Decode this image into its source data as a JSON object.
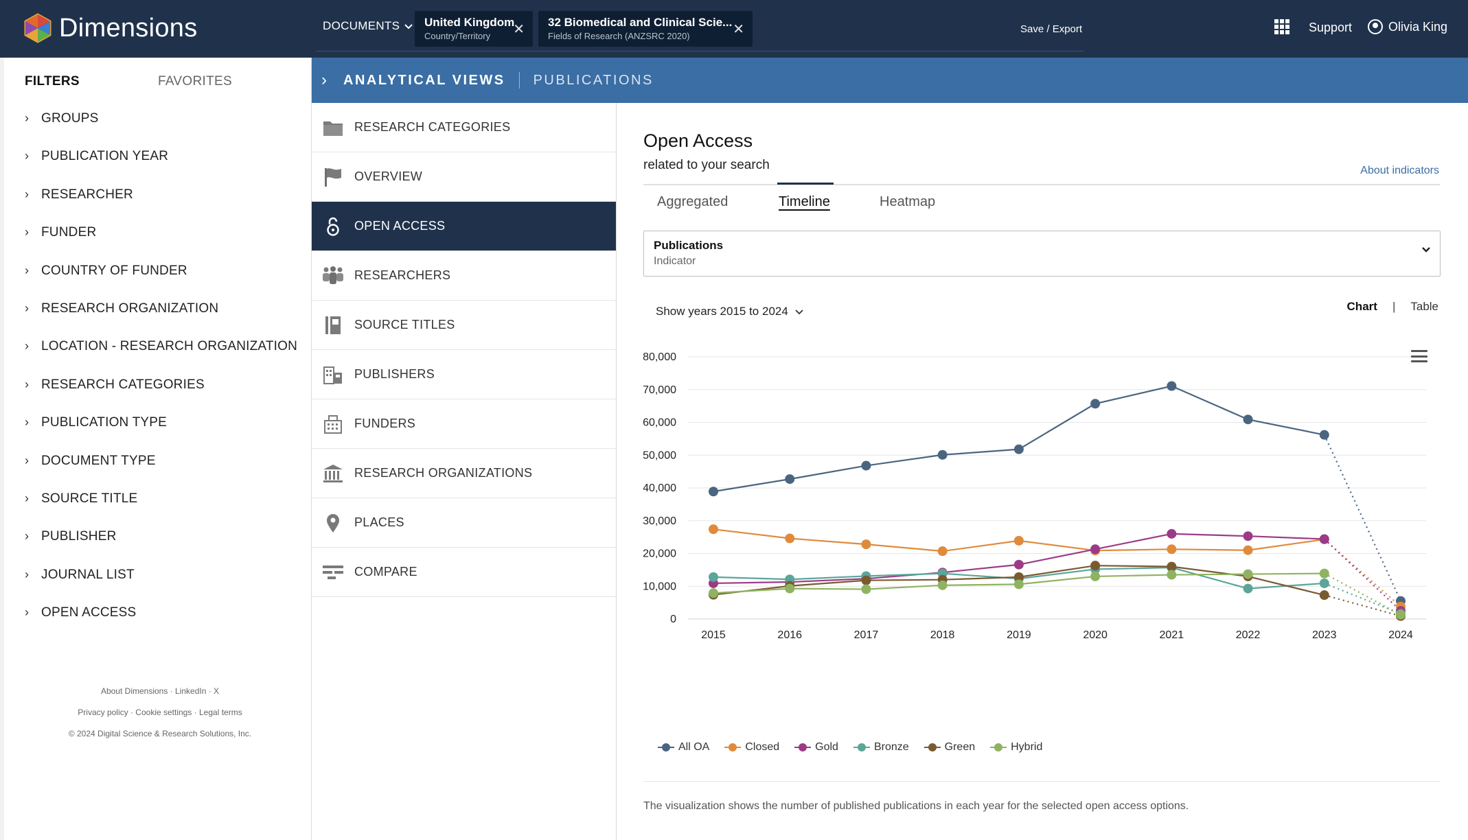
{
  "app": {
    "logo_text": "Dimensions",
    "documents_label": "DOCUMENTS",
    "chips": [
      {
        "title": "United Kingdom",
        "sub": "Country/Territory"
      },
      {
        "title": "32 Biomedical and Clinical Scie...",
        "sub": "Fields of Research (ANZSRC 2020)"
      }
    ],
    "save_export": "Save / Export",
    "support": "Support",
    "user_name": "Olivia King"
  },
  "sidebar": {
    "tab_filters": "FILTERS",
    "tab_favorites": "FAVORITES",
    "items": [
      "GROUPS",
      "PUBLICATION YEAR",
      "RESEARCHER",
      "FUNDER",
      "COUNTRY OF FUNDER",
      "RESEARCH ORGANIZATION",
      "LOCATION - RESEARCH ORGANIZATION",
      "RESEARCH CATEGORIES",
      "PUBLICATION TYPE",
      "DOCUMENT TYPE",
      "SOURCE TITLE",
      "PUBLISHER",
      "JOURNAL LIST",
      "OPEN ACCESS"
    ],
    "footer_links_1": "About Dimensions · LinkedIn · X",
    "footer_links_2": "Privacy policy · Cookie settings · Legal terms",
    "copyright": "© 2024 Digital Science & Research Solutions, Inc."
  },
  "header": {
    "title": "ANALYTICAL VIEWS",
    "subtitle": "PUBLICATIONS"
  },
  "nav": [
    {
      "label": "RESEARCH CATEGORIES",
      "icon": "folder-icon"
    },
    {
      "label": "OVERVIEW",
      "icon": "flag-icon"
    },
    {
      "label": "OPEN ACCESS",
      "icon": "open-lock-icon",
      "active": true
    },
    {
      "label": "RESEARCHERS",
      "icon": "people-icon"
    },
    {
      "label": "SOURCE TITLES",
      "icon": "book-icon"
    },
    {
      "label": "PUBLISHERS",
      "icon": "publisher-icon"
    },
    {
      "label": "FUNDERS",
      "icon": "funder-building-icon"
    },
    {
      "label": "RESEARCH ORGANIZATIONS",
      "icon": "institution-icon"
    },
    {
      "label": "PLACES",
      "icon": "map-pin-icon"
    },
    {
      "label": "COMPARE",
      "icon": "compare-icon"
    }
  ],
  "content": {
    "title": "Open Access",
    "subtitle": "related to your search",
    "about_indicators": "About indicators",
    "tabs": [
      "Aggregated",
      "Timeline",
      "Heatmap"
    ],
    "active_tab": "Timeline",
    "indicator_label": "Publications",
    "indicator_sub": "Indicator",
    "years_label": "Show years 2015 to 2024",
    "view_chart": "Chart",
    "view_sep": "|",
    "view_table": "Table",
    "caption": "The visualization shows the number of published publications in each year for the selected open access options."
  },
  "chart_data": {
    "type": "line",
    "x": [
      "2015",
      "2016",
      "2017",
      "2018",
      "2019",
      "2020",
      "2021",
      "2022",
      "2023",
      "2024"
    ],
    "ylim": [
      0,
      80000
    ],
    "yticks": [
      0,
      10000,
      20000,
      30000,
      40000,
      50000,
      60000,
      70000,
      80000
    ],
    "ytick_labels": [
      "0",
      "10,000",
      "20,000",
      "30,000",
      "40,000",
      "50,000",
      "60,000",
      "70,000",
      "80,000"
    ],
    "grid": true,
    "legend_position": "bottom-left",
    "last_segment_dotted": true,
    "series": [
      {
        "name": "All OA",
        "color": "#4a6580",
        "values": [
          38900,
          42700,
          46800,
          50100,
          51800,
          65700,
          71100,
          60900,
          56200,
          5500
        ]
      },
      {
        "name": "Closed",
        "color": "#e08a3c",
        "values": [
          27400,
          24600,
          22800,
          20700,
          23900,
          20900,
          21300,
          21000,
          24300,
          3800
        ]
      },
      {
        "name": "Gold",
        "color": "#9b3b86",
        "values": [
          10900,
          11300,
          12300,
          14200,
          16600,
          21300,
          26000,
          25300,
          24400,
          2500
        ]
      },
      {
        "name": "Bronze",
        "color": "#5ba59a",
        "values": [
          12800,
          12100,
          13100,
          13900,
          12300,
          15200,
          15700,
          9300,
          10900,
          1600
        ]
      },
      {
        "name": "Green",
        "color": "#7a5a30",
        "values": [
          7400,
          10100,
          11800,
          12000,
          12800,
          16300,
          16000,
          13000,
          7300,
          900
        ]
      },
      {
        "name": "Hybrid",
        "color": "#8fb360",
        "values": [
          7900,
          9300,
          9100,
          10300,
          10600,
          13000,
          13500,
          13700,
          13900,
          1300
        ]
      }
    ]
  }
}
